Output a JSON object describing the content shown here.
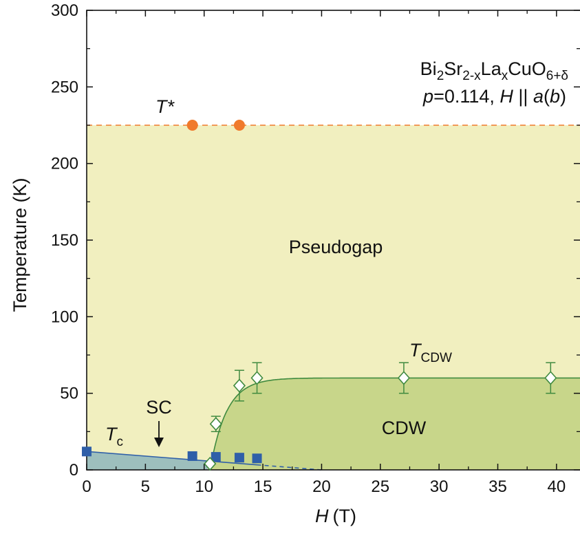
{
  "chart_data": {
    "type": "scatter",
    "xlabel": "H",
    "xlabel_unit": "(T)",
    "ylabel": "Temperature (K)",
    "xlim": [
      0,
      42
    ],
    "ylim": [
      0,
      300
    ],
    "xticks": [
      0,
      5,
      10,
      15,
      20,
      25,
      30,
      35,
      40
    ],
    "yticks": [
      0,
      50,
      100,
      150,
      200,
      250,
      300
    ],
    "sample": {
      "formula": {
        "p1": "Bi",
        "s1": "2",
        "p2": "Sr",
        "s2": "2-x",
        "p3": "La",
        "s3": "x",
        "p4": "CuO",
        "s4": "6+δ"
      },
      "cond": {
        "p": "p",
        "eq": "=0.114, ",
        "H": "H",
        "par": " || ",
        "a": "a",
        "open": "(",
        "b": "b",
        "close": ")"
      }
    },
    "regions": {
      "pseudogap": "Pseudogap",
      "cdw": "CDW",
      "sc": "SC"
    },
    "labels": {
      "tstar": "T*",
      "tc_main": "T",
      "tc_sub": "c",
      "tcdw_main": "T",
      "tcdw_sub": "CDW"
    },
    "colors": {
      "pseudogap_fill": "#f1efbf",
      "cdw_fill": "#c8d68a",
      "sc_fill": "#9dbfbd",
      "tstar": "#f07a2c",
      "tc": "#2f5fa8",
      "tcdw": "#3f8a3f"
    },
    "series": [
      {
        "name": "T*",
        "marker": "circle",
        "x": [
          9,
          13
        ],
        "y": [
          225,
          225
        ],
        "line_y": 225
      },
      {
        "name": "Tc",
        "marker": "square",
        "x": [
          0,
          9,
          11,
          13,
          14.5
        ],
        "y": [
          12,
          9,
          8.5,
          8,
          7.5
        ]
      },
      {
        "name": "TCDW",
        "marker": "diamond-open",
        "x": [
          10.5,
          11,
          13,
          14.5,
          27,
          39.5
        ],
        "y": [
          4,
          30,
          55,
          60,
          60,
          60
        ],
        "yerr": [
          0,
          5,
          10,
          10,
          10,
          10
        ]
      }
    ]
  }
}
